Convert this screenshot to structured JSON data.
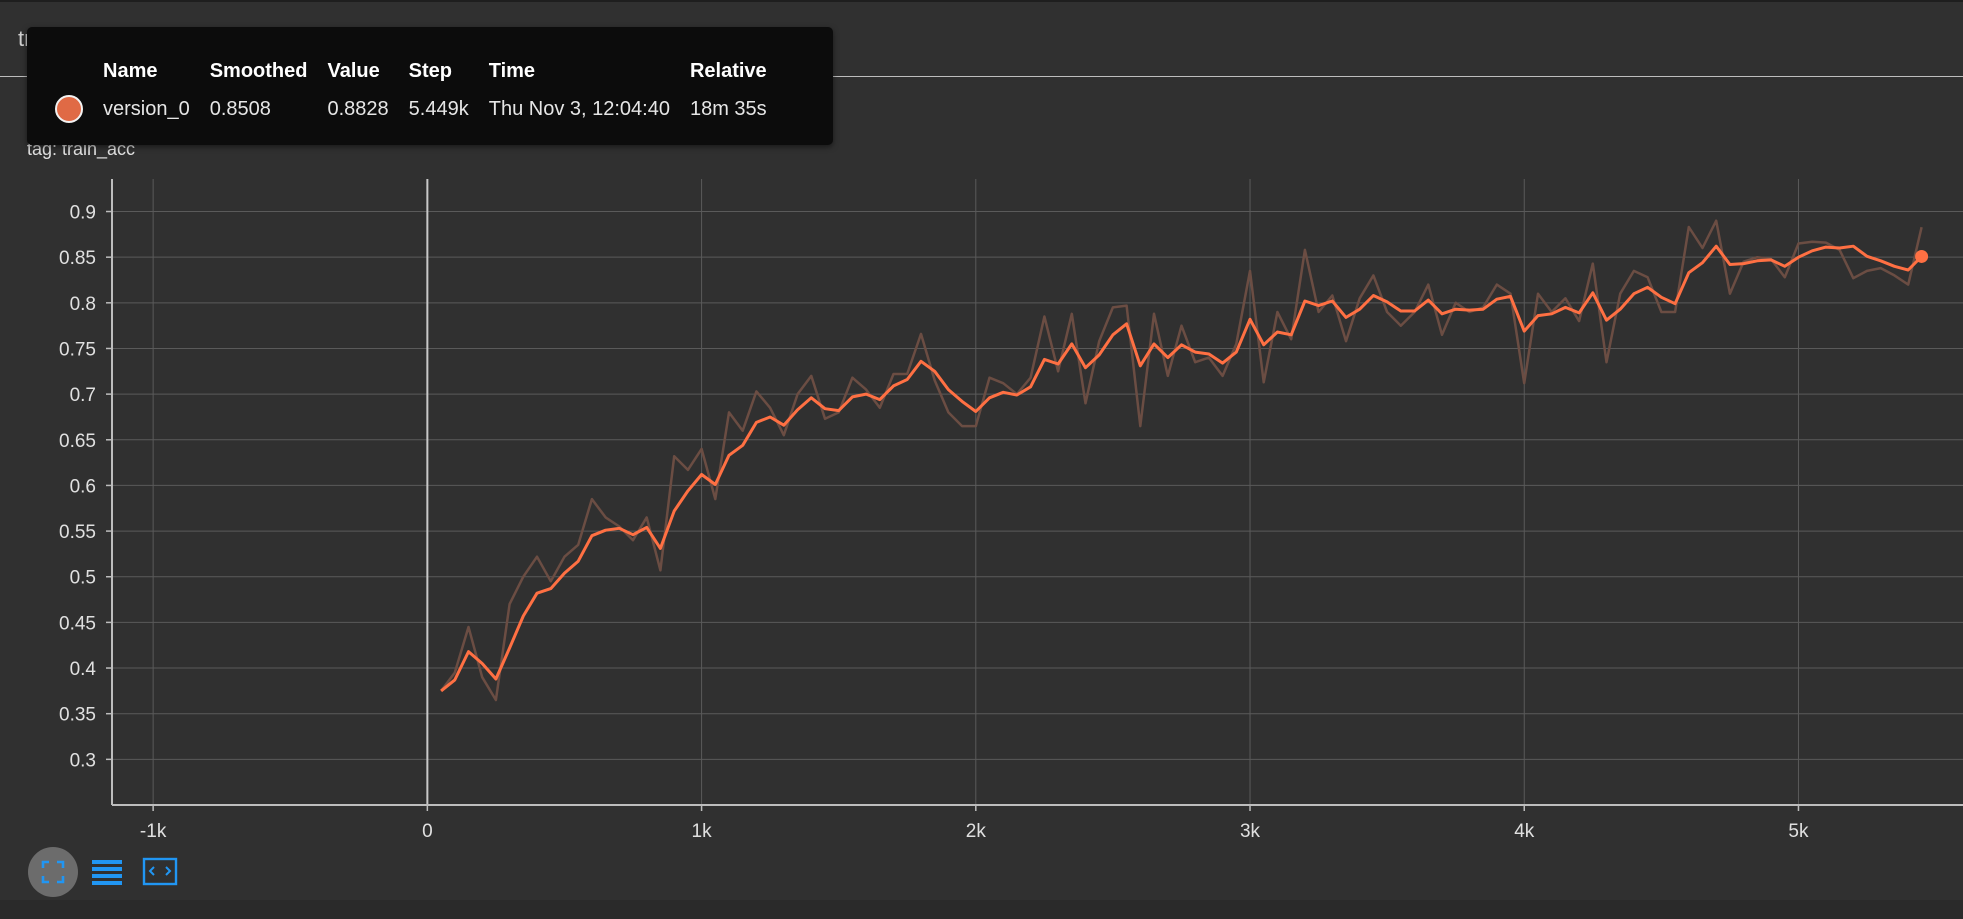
{
  "header": {
    "title": "train_acc"
  },
  "card": {
    "title": "train_acc",
    "tag": "tag: train_acc"
  },
  "tooltip": {
    "headers": {
      "name": "Name",
      "smoothed": "Smoothed",
      "value": "Value",
      "step": "Step",
      "time": "Time",
      "relative": "Relative"
    },
    "row": {
      "name": "version_0",
      "smoothed": "0.8508",
      "value": "0.8828",
      "step": "5.449k",
      "time": "Thu Nov 3, 12:04:40",
      "relative": "18m 35s",
      "color": "#e06a45"
    }
  },
  "toolbar": {
    "icons": [
      "fit-domain-icon",
      "toggle-log-icon",
      "expand-icon"
    ]
  },
  "colors": {
    "smoothed": "#ff7043",
    "raw": "#6b4d43",
    "accent": "#2196f3",
    "background": "#303030"
  },
  "chart_data": {
    "type": "line",
    "xlim": [
      -1150,
      5600
    ],
    "ylim": [
      0.25,
      0.94
    ],
    "x_ticks": [
      -1000,
      0,
      1000,
      2000,
      3000,
      4000,
      5000
    ],
    "x_tick_labels": [
      "-1k",
      "0",
      "1k",
      "2k",
      "3k",
      "4k",
      "5k"
    ],
    "y_ticks": [
      0.3,
      0.35,
      0.4,
      0.45,
      0.5,
      0.55,
      0.6,
      0.65,
      0.7,
      0.75,
      0.8,
      0.85,
      0.9
    ],
    "y_tick_labels": [
      "0.3",
      "0.35",
      "0.4",
      "0.45",
      "0.5",
      "0.55",
      "0.6",
      "0.65",
      "0.7",
      "0.75",
      "0.8",
      "0.85",
      "0.9"
    ],
    "grid": true,
    "series": [
      {
        "name": "version_0",
        "smoothing": 0.6,
        "x": [
          50,
          100,
          150,
          200,
          250,
          300,
          350,
          400,
          450,
          500,
          550,
          600,
          650,
          700,
          750,
          800,
          850,
          900,
          950,
          1000,
          1050,
          1100,
          1150,
          1200,
          1250,
          1300,
          1350,
          1400,
          1450,
          1500,
          1550,
          1600,
          1650,
          1700,
          1750,
          1800,
          1850,
          1900,
          1950,
          2000,
          2050,
          2100,
          2150,
          2200,
          2250,
          2300,
          2350,
          2400,
          2450,
          2500,
          2550,
          2600,
          2650,
          2700,
          2750,
          2800,
          2850,
          2900,
          2950,
          3000,
          3050,
          3100,
          3150,
          3200,
          3250,
          3300,
          3350,
          3400,
          3450,
          3500,
          3550,
          3600,
          3650,
          3700,
          3750,
          3800,
          3850,
          3900,
          3950,
          4000,
          4050,
          4100,
          4150,
          4200,
          4250,
          4300,
          4350,
          4400,
          4450,
          4500,
          4550,
          4600,
          4650,
          4700,
          4750,
          4800,
          4850,
          4900,
          4950,
          5000,
          5050,
          5100,
          5150,
          5200,
          5250,
          5300,
          5350,
          5400,
          5449
        ],
        "values": [
          0.375,
          0.395,
          0.445,
          0.39,
          0.365,
          0.47,
          0.5,
          0.522,
          0.495,
          0.522,
          0.535,
          0.585,
          0.565,
          0.555,
          0.54,
          0.565,
          0.507,
          0.632,
          0.617,
          0.64,
          0.585,
          0.68,
          0.66,
          0.703,
          0.685,
          0.655,
          0.7,
          0.72,
          0.673,
          0.68,
          0.718,
          0.705,
          0.685,
          0.722,
          0.722,
          0.766,
          0.715,
          0.68,
          0.665,
          0.665,
          0.718,
          0.712,
          0.7,
          0.718,
          0.785,
          0.725,
          0.788,
          0.69,
          0.758,
          0.795,
          0.797,
          0.665,
          0.788,
          0.72,
          0.775,
          0.735,
          0.74,
          0.72,
          0.755,
          0.835,
          0.713,
          0.79,
          0.76,
          0.858,
          0.79,
          0.808,
          0.758,
          0.805,
          0.83,
          0.79,
          0.775,
          0.79,
          0.82,
          0.765,
          0.8,
          0.79,
          0.795,
          0.82,
          0.81,
          0.712,
          0.81,
          0.79,
          0.805,
          0.78,
          0.843,
          0.735,
          0.81,
          0.835,
          0.828,
          0.79,
          0.79,
          0.883,
          0.86,
          0.89,
          0.81,
          0.845,
          0.85,
          0.848,
          0.828,
          0.865,
          0.867,
          0.866,
          0.858,
          0.827,
          0.835,
          0.838,
          0.83,
          0.82,
          0.8828
        ],
        "smoothed": [
          0.375,
          0.387,
          0.418,
          0.405,
          0.388,
          0.422,
          0.457,
          0.482,
          0.487,
          0.504,
          0.517,
          0.545,
          0.551,
          0.553,
          0.546,
          0.554,
          0.531,
          0.572,
          0.594,
          0.612,
          0.601,
          0.633,
          0.644,
          0.669,
          0.675,
          0.666,
          0.683,
          0.696,
          0.684,
          0.682,
          0.697,
          0.7,
          0.694,
          0.709,
          0.716,
          0.736,
          0.725,
          0.705,
          0.692,
          0.681,
          0.696,
          0.702,
          0.699,
          0.708,
          0.738,
          0.733,
          0.755,
          0.729,
          0.743,
          0.765,
          0.777,
          0.731,
          0.755,
          0.74,
          0.754,
          0.746,
          0.744,
          0.734,
          0.746,
          0.782,
          0.754,
          0.768,
          0.765,
          0.802,
          0.797,
          0.802,
          0.784,
          0.793,
          0.808,
          0.801,
          0.791,
          0.791,
          0.803,
          0.788,
          0.793,
          0.792,
          0.793,
          0.804,
          0.807,
          0.769,
          0.786,
          0.788,
          0.795,
          0.789,
          0.811,
          0.781,
          0.793,
          0.81,
          0.817,
          0.806,
          0.799,
          0.833,
          0.844,
          0.862,
          0.842,
          0.843,
          0.846,
          0.847,
          0.84,
          0.85,
          0.857,
          0.861,
          0.86,
          0.862,
          0.851,
          0.846,
          0.84,
          0.836,
          0.8508
        ]
      }
    ]
  }
}
